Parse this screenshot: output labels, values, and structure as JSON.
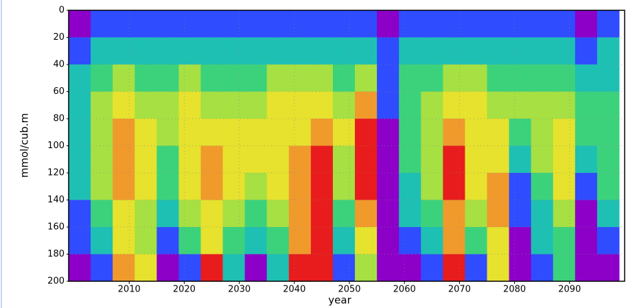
{
  "chart_data": {
    "type": "heatmap",
    "xlabel": "year",
    "ylabel": "mmol/cub.m",
    "xbins": [
      1999,
      2003,
      2007,
      2011,
      2015,
      2019,
      2023,
      2027,
      2031,
      2035,
      2039,
      2043,
      2047,
      2051,
      2055,
      2059,
      2063,
      2067,
      2071,
      2075,
      2079,
      2083,
      2087,
      2091,
      2095,
      2099
    ],
    "ybins": [
      0,
      20,
      40,
      60,
      80,
      100,
      120,
      140,
      160,
      180,
      200
    ],
    "xlim": [
      1999,
      2100
    ],
    "ylim": [
      200,
      0
    ],
    "xticks": [
      2010,
      2020,
      2030,
      2040,
      2050,
      2060,
      2070,
      2080,
      2090
    ],
    "yticks": [
      0,
      20,
      40,
      60,
      80,
      100,
      120,
      140,
      160,
      180,
      200
    ],
    "grid": true,
    "colors": [
      "#8c00c8",
      "#2f4cff",
      "#1ec0b4",
      "#3cd27c",
      "#a6e043",
      "#e6e22e",
      "#f09a2c",
      "#e81c1c"
    ],
    "z": [
      [
        1,
        2,
        2,
        2,
        2,
        2,
        2,
        2,
        2,
        2,
        2,
        2,
        2,
        2,
        1,
        2,
        2,
        2,
        2,
        2,
        2,
        2,
        2,
        1,
        2
      ],
      [
        2,
        3,
        3,
        3,
        3,
        3,
        3,
        3,
        3,
        3,
        3,
        3,
        3,
        3,
        2,
        3,
        3,
        3,
        3,
        3,
        3,
        3,
        3,
        2,
        3
      ],
      [
        3,
        4,
        5,
        4,
        4,
        5,
        4,
        4,
        4,
        5,
        5,
        5,
        4,
        5,
        2,
        4,
        4,
        5,
        5,
        4,
        4,
        4,
        4,
        3,
        3
      ],
      [
        3,
        5,
        6,
        5,
        5,
        6,
        5,
        5,
        5,
        6,
        6,
        6,
        5,
        7,
        2,
        4,
        5,
        6,
        6,
        5,
        5,
        5,
        5,
        4,
        4
      ],
      [
        3,
        5,
        7,
        6,
        5,
        6,
        6,
        6,
        6,
        6,
        6,
        7,
        6,
        8,
        1,
        4,
        5,
        7,
        6,
        6,
        4,
        5,
        6,
        4,
        4
      ],
      [
        3,
        5,
        7,
        6,
        4,
        6,
        7,
        6,
        6,
        6,
        7,
        8,
        5,
        8,
        1,
        4,
        5,
        8,
        6,
        6,
        3,
        5,
        6,
        3,
        4
      ],
      [
        3,
        5,
        7,
        6,
        4,
        6,
        7,
        6,
        5,
        6,
        7,
        8,
        5,
        8,
        1,
        3,
        5,
        8,
        6,
        7,
        2,
        4,
        6,
        2,
        4
      ],
      [
        2,
        4,
        6,
        5,
        3,
        5,
        6,
        5,
        4,
        5,
        7,
        8,
        4,
        7,
        1,
        3,
        4,
        7,
        5,
        7,
        2,
        3,
        5,
        1,
        3
      ],
      [
        2,
        3,
        6,
        5,
        2,
        4,
        6,
        4,
        3,
        4,
        7,
        8,
        3,
        6,
        1,
        2,
        3,
        7,
        4,
        6,
        1,
        3,
        4,
        1,
        2
      ],
      [
        1,
        2,
        7,
        6,
        1,
        2,
        8,
        3,
        1,
        3,
        8,
        8,
        2,
        5,
        1,
        1,
        2,
        8,
        2,
        6,
        1,
        2,
        4,
        1,
        1
      ]
    ]
  }
}
